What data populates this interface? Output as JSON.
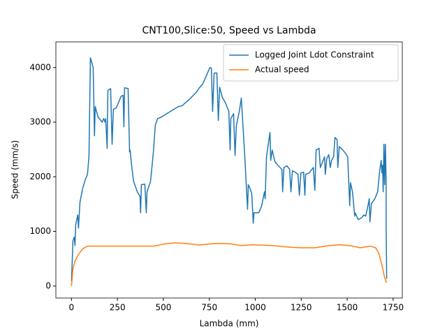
{
  "chart_data": {
    "type": "line",
    "title": "CNT100,Slice:50, Speed vs Lambda",
    "x_label": "Lambda (mm)",
    "y_label": "Speed (mm/s)",
    "xlim": [
      -85,
      1800
    ],
    "xticks": [
      0,
      250,
      500,
      750,
      1000,
      1250,
      1500,
      1750
    ],
    "ylim": [
      -220,
      4470
    ],
    "yticks": [
      0,
      1000,
      2000,
      3000,
      4000
    ],
    "grid": false,
    "legend": "upper right",
    "series": [
      {
        "name": "Logged Joint Ldot Constraint",
        "color": "#1f77b4",
        "x": [
          0,
          8,
          15,
          19,
          23,
          34,
          38,
          46,
          61,
          76,
          87,
          95,
          103,
          118,
          125,
          129,
          145,
          167,
          175,
          183,
          186,
          194,
          198,
          213,
          221,
          228,
          243,
          259,
          270,
          281,
          285,
          289,
          308,
          316,
          319,
          327,
          338,
          358,
          373,
          376,
          380,
          399,
          407,
          411,
          430,
          445,
          456,
          468,
          487,
          525,
          582,
          601,
          639,
          677,
          696,
          715,
          753,
          761,
          768,
          776,
          791,
          799,
          806,
          821,
          837,
          856,
          863,
          867,
          882,
          890,
          897,
          913,
          924,
          943,
          958,
          962,
          974,
          981,
          989,
          993,
          1019,
          1035,
          1050,
          1054,
          1061,
          1080,
          1084,
          1092,
          1107,
          1126,
          1145,
          1149,
          1156,
          1172,
          1187,
          1194,
          1202,
          1217,
          1232,
          1240,
          1248,
          1263,
          1270,
          1274,
          1293,
          1308,
          1316,
          1324,
          1331,
          1347,
          1354,
          1362,
          1377,
          1381,
          1389,
          1400,
          1408,
          1415,
          1426,
          1434,
          1445,
          1449,
          1457,
          1476,
          1491,
          1503,
          1514,
          1518,
          1529,
          1541,
          1544,
          1560,
          1579,
          1590,
          1601,
          1609,
          1617,
          1620,
          1624,
          1632,
          1651,
          1666,
          1677,
          1685,
          1689,
          1693,
          1696,
          1700,
          1704,
          1708,
          1712,
          1712,
          1715
        ],
        "values": [
          90,
          830,
          895,
          740,
          1125,
          1300,
          1060,
          1530,
          1790,
          1955,
          2045,
          2365,
          4180,
          4000,
          2750,
          3285,
          3090,
          3000,
          3065,
          3000,
          3065,
          2520,
          3580,
          3615,
          2595,
          3235,
          3260,
          3385,
          3475,
          3490,
          2915,
          3630,
          3615,
          2455,
          2490,
          2210,
          1915,
          1725,
          1635,
          1340,
          1855,
          1865,
          1340,
          1725,
          1915,
          2430,
          2940,
          3065,
          3090,
          3170,
          3285,
          3300,
          3410,
          3540,
          3630,
          3705,
          4000,
          3990,
          3195,
          3900,
          3900,
          3030,
          3640,
          3450,
          3360,
          3195,
          2490,
          3065,
          3155,
          2390,
          2940,
          3195,
          3440,
          2365,
          1405,
          1855,
          1765,
          1690,
          1150,
          1340,
          1340,
          1470,
          1725,
          1600,
          2365,
          2810,
          2300,
          2490,
          2275,
          2200,
          2135,
          1725,
          2170,
          2200,
          2135,
          1725,
          2110,
          2085,
          2045,
          1660,
          2070,
          2085,
          1660,
          2045,
          2070,
          2135,
          2170,
          1750,
          2490,
          2520,
          2170,
          2235,
          2365,
          2045,
          2330,
          2405,
          2170,
          2300,
          2365,
          2720,
          2680,
          2170,
          2555,
          2490,
          2430,
          2365,
          1470,
          1890,
          1725,
          1280,
          1340,
          1215,
          1250,
          1300,
          1280,
          1405,
          1535,
          1600,
          1175,
          1510,
          1600,
          1725,
          2110,
          2300,
          2070,
          2210,
          1725,
          2595,
          1855,
          2595,
          1915,
          1150,
          130
        ]
      },
      {
        "name": "Actual speed",
        "color": "#ff7f0e",
        "x": [
          0,
          8,
          19,
          38,
          61,
          87,
          145,
          373,
          449,
          506,
          563,
          620,
          696,
          753,
          810,
          867,
          924,
          981,
          1095,
          1172,
          1248,
          1324,
          1400,
          1457,
          1514,
          1571,
          1628,
          1655,
          1674,
          1689,
          1704,
          1715
        ],
        "values": [
          0,
          320,
          450,
          580,
          680,
          730,
          730,
          730,
          730,
          770,
          790,
          780,
          750,
          770,
          780,
          770,
          740,
          755,
          740,
          715,
          700,
          700,
          740,
          755,
          740,
          700,
          730,
          700,
          580,
          385,
          150,
          60
        ]
      }
    ]
  }
}
